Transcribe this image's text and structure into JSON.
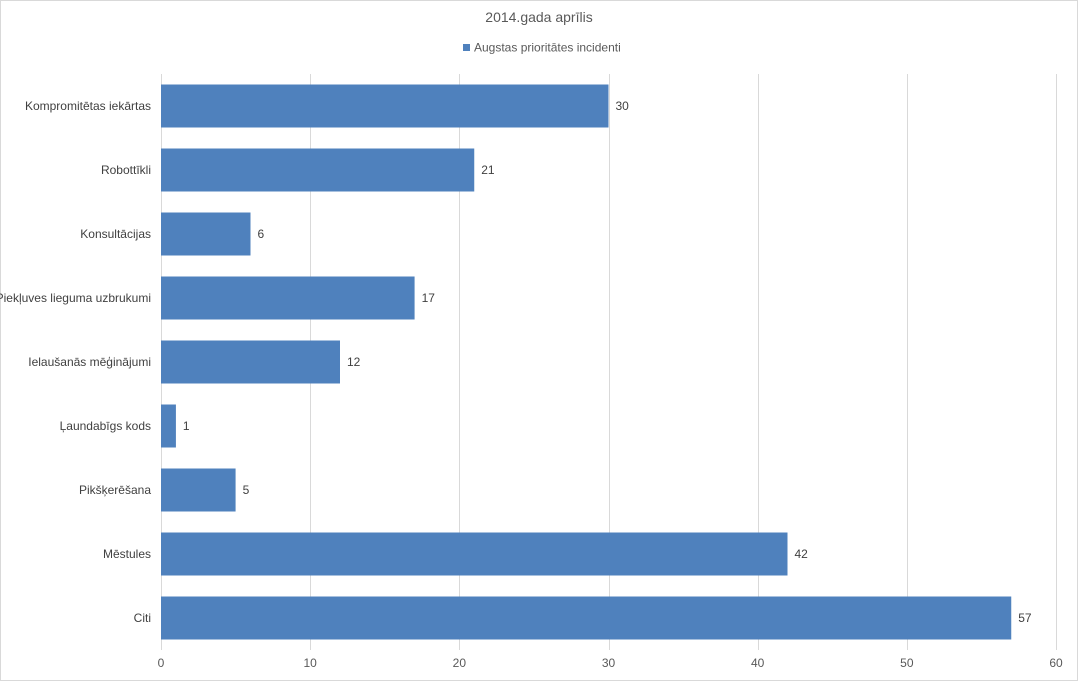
{
  "chart_data": {
    "type": "bar",
    "orientation": "horizontal",
    "title": "2014.gada aprīlis",
    "categories": [
      "Kompromitētas iekārtas",
      "Robottīkli",
      "Konsultācijas",
      "Piekļuves lieguma uzbrukumi",
      "Ielaušanās mēģinājumi",
      "Ļaundabīgs kods",
      "Pikšķerēšana",
      "Mēstules",
      "Citi"
    ],
    "series": [
      {
        "name": "Augstas prioritātes incidenti",
        "values": [
          30,
          21,
          6,
          17,
          12,
          1,
          5,
          42,
          57
        ],
        "color": "#4f81bd"
      }
    ],
    "xlim": [
      0,
      60
    ],
    "xticks": [
      0,
      10,
      20,
      30,
      40,
      50,
      60
    ],
    "grid": "vertical",
    "legend": "top-center",
    "data_labels": true,
    "gridline_color": "#d9d9d9"
  }
}
